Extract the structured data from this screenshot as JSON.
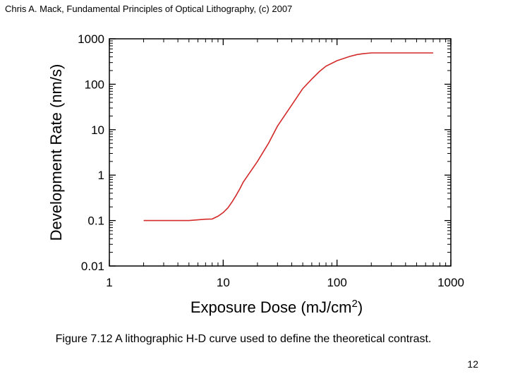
{
  "header": {
    "text": "Chris A. Mack, Fundamental Principles of Optical Lithography, (c) 2007"
  },
  "caption": {
    "text": "Figure 7.12  A lithographic H-D curve used to define the theoretical contrast."
  },
  "page_number": "12",
  "chart_data": {
    "type": "line",
    "title": "",
    "xlabel": "Exposure Dose (mJ/cm",
    "xlabel_superscript": "2",
    "xlabel_suffix": ")",
    "ylabel": "Development Rate (nm/s)",
    "xscale": "log",
    "yscale": "log",
    "xlim": [
      1,
      1000
    ],
    "ylim": [
      0.01,
      1000
    ],
    "x_tick_labels": [
      "1",
      "10",
      "100",
      "1000"
    ],
    "y_tick_labels": [
      "0.01",
      "0.1",
      "1",
      "10",
      "100",
      "1000"
    ],
    "grid": false,
    "legend": false,
    "series": [
      {
        "color": "#d42a2a",
        "x": [
          2,
          3,
          5,
          7,
          8,
          9,
          10,
          11,
          12,
          13,
          14,
          15,
          20,
          25,
          30,
          40,
          50,
          60,
          70,
          80,
          100,
          130,
          150,
          170,
          200,
          300,
          500,
          700
        ],
        "y": [
          0.1,
          0.1,
          0.1,
          0.107,
          0.108,
          0.125,
          0.15,
          0.19,
          0.26,
          0.36,
          0.5,
          0.7,
          2.0,
          5.0,
          12,
          35,
          80,
          130,
          190,
          250,
          330,
          410,
          450,
          470,
          490,
          490,
          490,
          490
        ]
      }
    ]
  }
}
